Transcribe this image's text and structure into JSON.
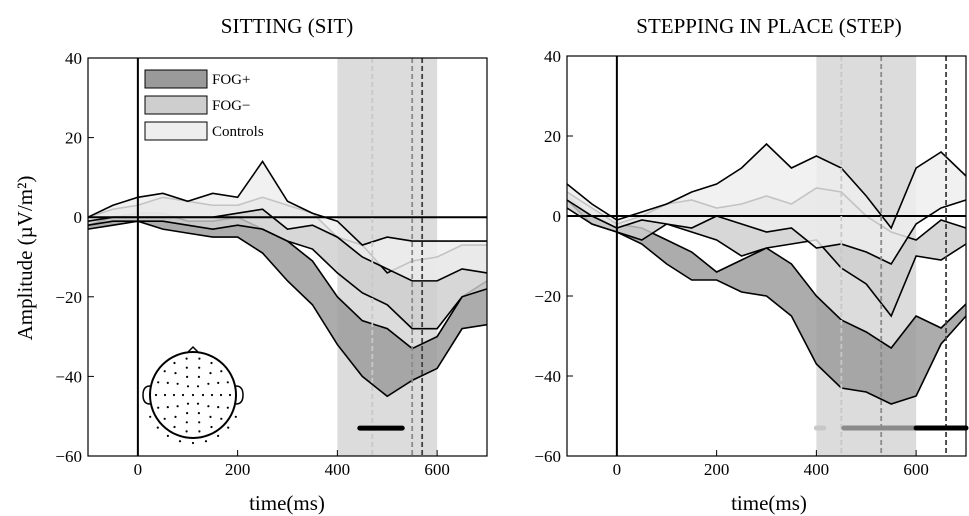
{
  "chart_data": {
    "type": "area",
    "ylabel": "Amplitude (µV/m²)",
    "legend": {
      "placement": "top-left (left panel)",
      "entries": [
        {
          "label": "FOG+",
          "color": "#9a9a9a"
        },
        {
          "label": "FOG−",
          "color": "#cecece"
        },
        {
          "label": "Controls",
          "color": "#eeeeee"
        }
      ]
    },
    "panels": [
      {
        "title": "SITTING (SIT)",
        "xlabel": "time(ms)",
        "xlim": [
          -100,
          700
        ],
        "ylim": [
          -60,
          40
        ],
        "xticks": [
          0,
          200,
          400,
          600
        ],
        "yticks": [
          -60,
          -40,
          -20,
          0,
          20,
          40
        ],
        "shaded_window": [
          400,
          600
        ],
        "vlines": [
          {
            "x": 470,
            "color": "#c8c8c8"
          },
          {
            "x": 550,
            "color": "#8a8a8a"
          },
          {
            "x": 570,
            "color": "#404040"
          }
        ],
        "significance_bars": [
          {
            "from": 445,
            "to": 530,
            "color": "#000000"
          }
        ],
        "series": [
          {
            "name": "FOG+",
            "color": "#9a9a9a",
            "x": [
              -100,
              -50,
              0,
              50,
              100,
              150,
              200,
              250,
              300,
              350,
              400,
              450,
              500,
              550,
              600,
              650,
              700
            ],
            "upper": [
              -2,
              0,
              1,
              1,
              -1,
              -1,
              0,
              -3,
              -6,
              -11,
              -20,
              -26,
              -28,
              -33,
              -30,
              -20,
              -16
            ],
            "lower": [
              -3,
              -2,
              -1,
              -3,
              -4,
              -5,
              -5,
              -9,
              -16,
              -22,
              -32,
              -40,
              -45,
              -41,
              -38,
              -28,
              -27
            ]
          },
          {
            "name": "FOG−",
            "color": "#cecece",
            "x": [
              -100,
              -50,
              0,
              50,
              100,
              150,
              200,
              250,
              300,
              350,
              400,
              450,
              500,
              550,
              600,
              650,
              700
            ],
            "upper": [
              0,
              2,
              3,
              5,
              4,
              3,
              3,
              5,
              3,
              1,
              -5,
              -7,
              -14,
              -11,
              -10,
              -7,
              -7
            ],
            "lower": [
              -2,
              -1,
              -1,
              -1,
              -2,
              -3,
              -2,
              -3,
              -6,
              -8,
              -14,
              -19,
              -22,
              -28,
              -28,
              -20,
              -18
            ]
          },
          {
            "name": "Controls",
            "color": "#eeeeee",
            "x": [
              -100,
              -50,
              0,
              50,
              100,
              150,
              200,
              250,
              300,
              350,
              400,
              450,
              500,
              550,
              600,
              650,
              700
            ],
            "upper": [
              0,
              3,
              5,
              6,
              4,
              6,
              5,
              14,
              4,
              1,
              -1,
              -7,
              -5,
              -6,
              -6,
              -6,
              -6
            ],
            "lower": [
              -1,
              0,
              0,
              0,
              0,
              0,
              1,
              2,
              -3,
              -2,
              -5,
              -10,
              -13,
              -16,
              -16,
              -13,
              -14
            ]
          }
        ]
      },
      {
        "title": "STEPPING IN PLACE (STEP)",
        "xlabel": "time(ms)",
        "xlim": [
          -100,
          700
        ],
        "ylim": [
          -60,
          40
        ],
        "xticks": [
          0,
          200,
          400,
          600
        ],
        "yticks": [
          -60,
          -40,
          -20,
          0,
          20,
          40
        ],
        "shaded_window": [
          400,
          600
        ],
        "vlines": [
          {
            "x": 450,
            "color": "#c8c8c8"
          },
          {
            "x": 530,
            "color": "#8a8a8a"
          },
          {
            "x": 660,
            "color": "#404040"
          }
        ],
        "significance_bars": [
          {
            "from": 400,
            "to": 415,
            "color": "#c8c8c8"
          },
          {
            "from": 455,
            "to": 600,
            "color": "#8a8a8a"
          },
          {
            "from": 600,
            "to": 700,
            "color": "#000000"
          }
        ],
        "series": [
          {
            "name": "FOG+",
            "color": "#9a9a9a",
            "x": [
              -100,
              -50,
              0,
              50,
              100,
              150,
              200,
              250,
              300,
              350,
              400,
              450,
              500,
              550,
              600,
              650,
              700
            ],
            "upper": [
              5,
              0,
              -2,
              -3,
              -6,
              -9,
              -14,
              -11,
              -8,
              -12,
              -20,
              -26,
              -29,
              -33,
              -25,
              -28,
              -22
            ],
            "lower": [
              4,
              -2,
              -4,
              -7,
              -12,
              -16,
              -16,
              -19,
              -20,
              -25,
              -37,
              -43,
              -44,
              -47,
              -45,
              -32,
              -25
            ]
          },
          {
            "name": "FOG−",
            "color": "#cecece",
            "x": [
              -100,
              -50,
              0,
              50,
              100,
              150,
              200,
              250,
              300,
              350,
              400,
              450,
              500,
              550,
              600,
              650,
              700
            ],
            "upper": [
              6,
              2,
              -2,
              0,
              3,
              4,
              2,
              3,
              5,
              3,
              7,
              6,
              0,
              -4,
              -6,
              -1,
              -3
            ],
            "lower": [
              2,
              -2,
              -4,
              -6,
              -2,
              -4,
              -6,
              -10,
              -8,
              -7,
              -6,
              -13,
              -17,
              -25,
              -10,
              -11,
              -7
            ]
          },
          {
            "name": "Controls",
            "color": "#eeeeee",
            "x": [
              -100,
              -50,
              0,
              50,
              100,
              150,
              200,
              250,
              300,
              350,
              400,
              450,
              500,
              550,
              600,
              650,
              700
            ],
            "upper": [
              8,
              3,
              -1,
              1,
              3,
              6,
              8,
              12,
              18,
              12,
              15,
              12,
              5,
              -3,
              12,
              16,
              10
            ],
            "lower": [
              4,
              0,
              -3,
              -1,
              -2,
              -3,
              0,
              -2,
              -4,
              -3,
              -8,
              -7,
              -9,
              -12,
              -2,
              2,
              4
            ]
          }
        ]
      }
    ]
  }
}
